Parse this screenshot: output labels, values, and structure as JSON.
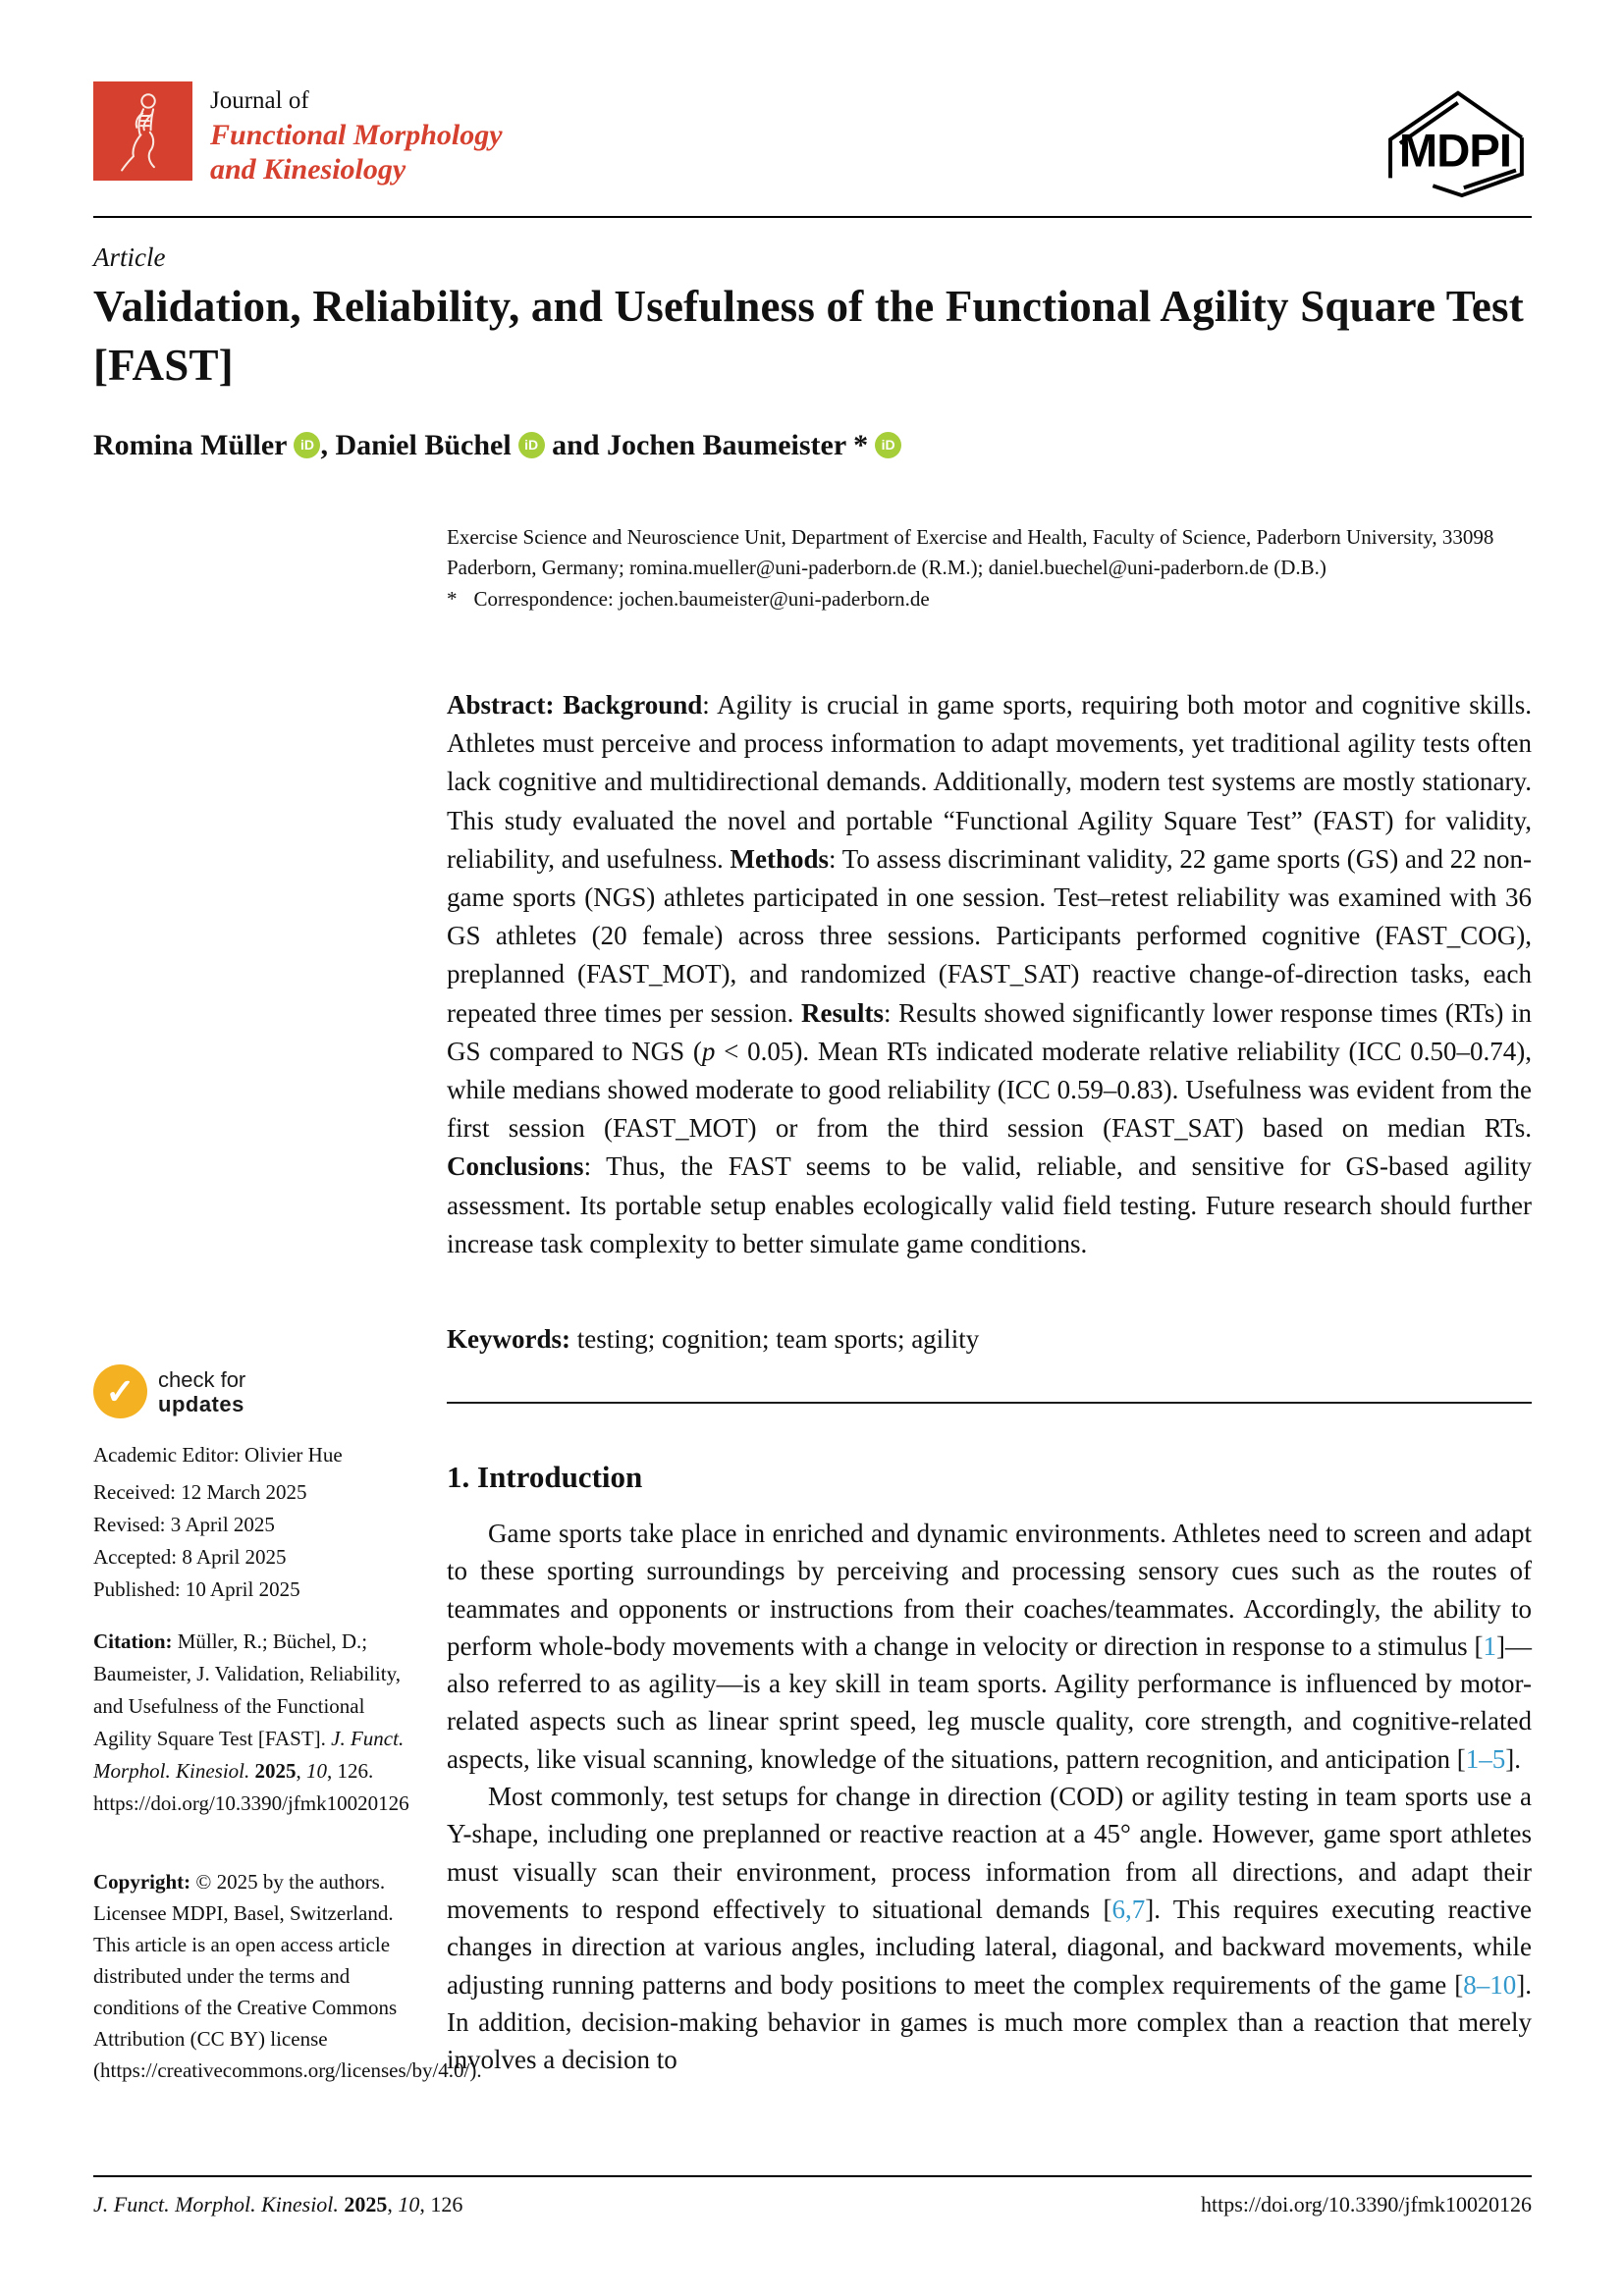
{
  "colors": {
    "brand_red": "#d6402e",
    "orcid_green": "#a6ce39",
    "badge_yellow": "#f4b223",
    "link_blue": "#3399cc"
  },
  "header": {
    "journal_prefix": "Journal of",
    "journal_name_line1": "Functional Morphology",
    "journal_name_line2": "and Kinesiology",
    "publisher_logo": "MDPI"
  },
  "meta": {
    "article_type": "Article",
    "title": "Validation, Reliability, and Usefulness of the Functional Agility Square Test [FAST]",
    "orcid_glyph": "iD",
    "authors": {
      "a1": "Romina Müller",
      "sep1": ", ",
      "a2": "Daniel Büchel",
      "sep2": " and ",
      "a3": "Jochen Baumeister *"
    },
    "affiliation": "Exercise Science and Neuroscience Unit, Department of Exercise and Health, Faculty of Science, Paderborn University, 33098 Paderborn, Germany; romina.mueller@uni-paderborn.de (R.M.); daniel.buechel@uni-paderborn.de (D.B.)",
    "correspondence_marker": "*",
    "correspondence": "Correspondence: jochen.baumeister@uni-paderborn.de"
  },
  "abstract": {
    "segments": [
      {
        "t": "Abstract: Background",
        "s": "b"
      },
      {
        "t": ": Agility is crucial in game sports, requiring both motor and cognitive skills. Athletes must perceive and process information to adapt movements, yet traditional agility tests often lack cognitive and multidirectional demands. Additionally, modern test systems are mostly stationary. This study evaluated the novel and portable “Functional Agility Square Test” (FAST) for validity, reliability, and usefulness. ",
        "s": ""
      },
      {
        "t": "Methods",
        "s": "b"
      },
      {
        "t": ": To assess discriminant validity, 22 game sports (GS) and 22 non-game sports (NGS) athletes participated in one session. Test–retest reliability was examined with 36 GS athletes (20 female) across three sessions. Participants performed cognitive (FAST_COG), preplanned (FAST_MOT), and randomized (FAST_SAT) reactive change-of-direction tasks, each repeated three times per session. ",
        "s": ""
      },
      {
        "t": "Results",
        "s": "b"
      },
      {
        "t": ": Results showed significantly lower response times (RTs) in GS compared to NGS (",
        "s": ""
      },
      {
        "t": "p",
        "s": "i"
      },
      {
        "t": " < 0.05). Mean RTs indicated moderate relative reliability (ICC 0.50–0.74), while medians showed moderate to good reliability (ICC 0.59–0.83). Usefulness was evident from the first session (FAST_MOT) or from the third session (FAST_SAT) based on median RTs. ",
        "s": ""
      },
      {
        "t": "Conclusions",
        "s": "b"
      },
      {
        "t": ": Thus, the FAST seems to be valid, reliable, and sensitive for GS-based agility assessment. Its portable setup enables ecologically valid field testing. Future research should further increase task complexity to better simulate game conditions.",
        "s": ""
      }
    ]
  },
  "keywords": {
    "label": "Keywords: ",
    "text": "testing; cognition; team sports; agility"
  },
  "sidebar": {
    "check_updates": {
      "glyph": "✓",
      "line1": "check for",
      "line2": "updates"
    },
    "academic_editor": "Academic Editor: Olivier Hue",
    "received": "Received: 12 March 2025",
    "revised": "Revised: 3 April 2025",
    "accepted": "Accepted: 8 April 2025",
    "published": "Published: 10 April 2025",
    "citation": {
      "segments": [
        {
          "t": "Citation: ",
          "s": "b"
        },
        {
          "t": "Müller, R.; Büchel, D.; Baumeister, J. Validation, Reliability, and Usefulness of the Functional Agility Square Test [FAST]. ",
          "s": ""
        },
        {
          "t": "J. Funct. Morphol. Kinesiol. ",
          "s": "i"
        },
        {
          "t": "2025",
          "s": "b"
        },
        {
          "t": ", ",
          "s": ""
        },
        {
          "t": "10",
          "s": "i"
        },
        {
          "t": ", 126. https://doi.org/10.3390/jfmk10020126",
          "s": ""
        }
      ]
    },
    "copyright": {
      "segments": [
        {
          "t": "Copyright: ",
          "s": "b"
        },
        {
          "t": "© 2025 by the authors. Licensee MDPI, Basel, Switzerland. This article is an open access article distributed under the terms and conditions of the Creative Commons Attribution (CC BY) license (https://creativecommons.org/licenses/by/4.0/).",
          "s": ""
        }
      ]
    }
  },
  "body": {
    "section1_heading": "1. Introduction",
    "p1": {
      "segments": [
        {
          "t": "Game sports take place in enriched and dynamic environments.  Athletes need to screen and adapt to these sporting surroundings by perceiving and processing sensory cues such as the routes of teammates and opponents or instructions from their coaches/teammates. Accordingly, the ability to perform whole-body movements with a change in velocity or direction in response to a stimulus [",
          "s": ""
        },
        {
          "t": "1",
          "s": "cite"
        },
        {
          "t": "]—also referred to as agility—is a key skill in team sports. Agility performance is influenced by motor-related aspects such as linear sprint speed, leg muscle quality, core strength, and cognitive-related aspects, like visual scanning, knowledge of the situations, pattern recognition, and anticipation [",
          "s": ""
        },
        {
          "t": "1–5",
          "s": "cite"
        },
        {
          "t": "].",
          "s": ""
        }
      ]
    },
    "p2": {
      "segments": [
        {
          "t": "Most commonly, test setups for change in direction (COD) or agility testing in team sports use a Y-shape, including one preplanned or reactive reaction at a 45° angle. However, game sport athletes must visually scan their environment, process information from all directions, and adapt their movements to respond effectively to situational demands [",
          "s": ""
        },
        {
          "t": "6,7",
          "s": "cite"
        },
        {
          "t": "]. This requires executing reactive changes in direction at various angles, including lateral, diagonal, and backward movements, while adjusting running patterns and body positions to meet the complex requirements of the game [",
          "s": ""
        },
        {
          "t": "8–10",
          "s": "cite"
        },
        {
          "t": "].  In addition, decision-making behavior in games is much more complex than a reaction that merely involves a decision to",
          "s": ""
        }
      ]
    }
  },
  "footer": {
    "left": {
      "segments": [
        {
          "t": "J. Funct. Morphol. Kinesiol. ",
          "s": "i"
        },
        {
          "t": "2025",
          "s": "b"
        },
        {
          "t": ", ",
          "s": ""
        },
        {
          "t": "10",
          "s": "i"
        },
        {
          "t": ", 126",
          "s": ""
        }
      ]
    },
    "right": "https://doi.org/10.3390/jfmk10020126"
  }
}
